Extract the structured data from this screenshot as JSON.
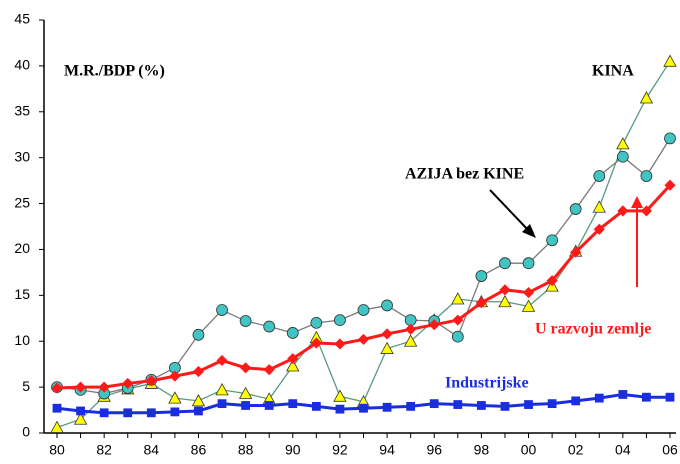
{
  "chart_data": {
    "type": "line",
    "title": "M.R./BDP (%)",
    "categories": [
      "80",
      null,
      "82",
      null,
      "84",
      null,
      "86",
      null,
      "88",
      null,
      "90",
      null,
      "92",
      null,
      "94",
      null,
      "96",
      null,
      "98",
      null,
      "00",
      null,
      "02",
      null,
      "04",
      null,
      "06"
    ],
    "ylim": [
      0,
      45
    ],
    "yticks": [
      0,
      5,
      10,
      15,
      20,
      25,
      30,
      35,
      40,
      45
    ],
    "series": [
      {
        "name": "Industrijske",
        "color": "#1a2ee0",
        "marker": "square",
        "line_color": "#1a2ee0",
        "values": [
          2.7,
          2.4,
          2.2,
          2.2,
          2.2,
          2.3,
          2.4,
          3.2,
          3.0,
          3.0,
          3.2,
          2.9,
          2.6,
          2.7,
          2.8,
          2.9,
          3.2,
          3.1,
          3.0,
          2.9,
          3.1,
          3.2,
          3.5,
          3.8,
          4.2,
          3.9,
          3.9
        ]
      },
      {
        "name": "U razvoju zemlje",
        "color": "#ff1a1a",
        "marker": "diamond",
        "line_color": "#ff1a1a",
        "values": [
          4.9,
          5.0,
          5.0,
          5.4,
          5.7,
          6.2,
          6.7,
          7.9,
          7.1,
          6.9,
          8.1,
          9.8,
          9.7,
          10.2,
          10.8,
          11.3,
          11.8,
          12.3,
          14.2,
          15.6,
          15.3,
          16.6,
          19.7,
          22.2,
          24.2,
          24.2,
          27.0
        ]
      },
      {
        "name": "AZIJA bez KINE",
        "color": "#40c4c4",
        "marker": "circle",
        "line_color": "#7a7a7a",
        "values": [
          5.0,
          4.7,
          4.3,
          4.9,
          5.8,
          7.1,
          10.7,
          13.4,
          12.2,
          11.6,
          10.9,
          12.0,
          12.3,
          13.4,
          13.9,
          12.3,
          12.2,
          10.5,
          17.1,
          18.5,
          18.5,
          21.0,
          24.4,
          28.0,
          30.1,
          28.0,
          32.1
        ]
      },
      {
        "name": "KINA",
        "color": "#ffff00",
        "marker": "triangle",
        "line_color": "#5a9a7a",
        "values": [
          0.6,
          1.5,
          4.0,
          4.8,
          5.4,
          3.8,
          3.5,
          4.7,
          4.3,
          3.7,
          7.3,
          10.4,
          4.0,
          3.4,
          9.2,
          10.0,
          12.3,
          14.6,
          14.3,
          14.3,
          13.8,
          16.0,
          19.8,
          24.6,
          31.5,
          36.5,
          40.5
        ]
      }
    ]
  }
}
